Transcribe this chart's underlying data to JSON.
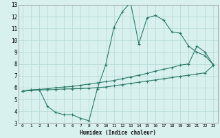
{
  "xlabel": "Humidex (Indice chaleur)",
  "bg_color": "#d8f0ee",
  "grid_color": "#b8dcd8",
  "line_color": "#2a7a68",
  "xlim": [
    -0.5,
    23.5
  ],
  "ylim": [
    3,
    13
  ],
  "xticks": [
    0,
    1,
    2,
    3,
    4,
    5,
    6,
    7,
    8,
    9,
    10,
    11,
    12,
    13,
    14,
    15,
    16,
    17,
    18,
    19,
    20,
    21,
    22,
    23
  ],
  "yticks": [
    3,
    4,
    5,
    6,
    7,
    8,
    9,
    10,
    11,
    12,
    13
  ],
  "line1_x": [
    0,
    1,
    2,
    3,
    4,
    5,
    6,
    7,
    8,
    9,
    10,
    11,
    12,
    13,
    14,
    15,
    16,
    17,
    18,
    19,
    20,
    21,
    22,
    23
  ],
  "line1_y": [
    5.7,
    5.8,
    5.85,
    4.4,
    3.9,
    3.7,
    3.7,
    3.4,
    3.2,
    5.9,
    7.9,
    11.1,
    12.4,
    13.2,
    9.7,
    11.9,
    12.1,
    11.7,
    10.7,
    10.6,
    9.5,
    9.0,
    8.7,
    7.9
  ],
  "line2_x": [
    0,
    1,
    2,
    3,
    4,
    5,
    6,
    7,
    8,
    9,
    10,
    11,
    12,
    13,
    14,
    15,
    16,
    17,
    18,
    19,
    20,
    21,
    22,
    23
  ],
  "line2_y": [
    5.7,
    5.8,
    5.85,
    5.9,
    6.0,
    6.05,
    6.1,
    6.2,
    6.3,
    6.4,
    6.5,
    6.6,
    6.75,
    6.9,
    7.05,
    7.2,
    7.4,
    7.55,
    7.7,
    7.9,
    8.0,
    9.5,
    9.0,
    7.9
  ],
  "line3_x": [
    0,
    1,
    2,
    3,
    4,
    5,
    6,
    7,
    8,
    9,
    10,
    11,
    12,
    13,
    14,
    15,
    16,
    17,
    18,
    19,
    20,
    21,
    22,
    23
  ],
  "line3_y": [
    5.7,
    5.75,
    5.8,
    5.82,
    5.85,
    5.88,
    5.9,
    5.92,
    5.95,
    6.0,
    6.05,
    6.15,
    6.25,
    6.35,
    6.45,
    6.55,
    6.65,
    6.75,
    6.85,
    6.95,
    7.05,
    7.15,
    7.25,
    7.9
  ]
}
